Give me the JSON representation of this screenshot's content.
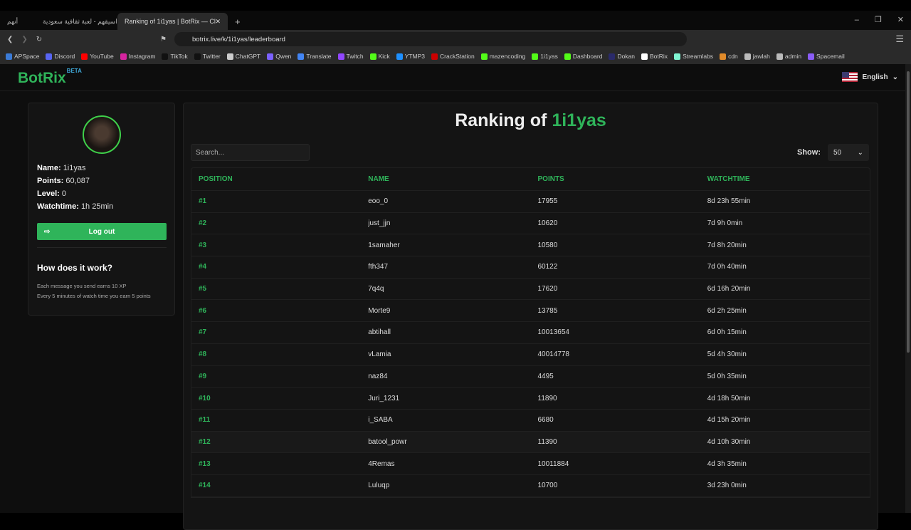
{
  "browser": {
    "tabs": [
      {
        "label": "اسيقهم - لعبة ثقافية سعودية"
      },
      {
        "label": "Ranking of 1i1yas | BotRix — Cl"
      }
    ],
    "profile_label": "أنهم",
    "url": "botrix.live/k/1i1yas/leaderboard",
    "bookmarks": [
      {
        "label": "APSpace",
        "color": "#3b7bd6"
      },
      {
        "label": "Discord",
        "color": "#5865f2"
      },
      {
        "label": "YouTube",
        "color": "#ff0000"
      },
      {
        "label": "Instagram",
        "color": "#d6249f"
      },
      {
        "label": "TikTok",
        "color": "#111111"
      },
      {
        "label": "Twitter",
        "color": "#111111"
      },
      {
        "label": "ChatGPT",
        "color": "#cccccc"
      },
      {
        "label": "Qwen",
        "color": "#7b61ff"
      },
      {
        "label": "Translate",
        "color": "#4285f4"
      },
      {
        "label": "Twitch",
        "color": "#9146ff"
      },
      {
        "label": "Kick",
        "color": "#53fc18"
      },
      {
        "label": "YTMP3",
        "color": "#1e90ff"
      },
      {
        "label": "CrackStation",
        "color": "#cc0000"
      },
      {
        "label": "mazencoding",
        "color": "#53fc18"
      },
      {
        "label": "1i1yas",
        "color": "#53fc18"
      },
      {
        "label": "Dashboard",
        "color": "#53fc18"
      },
      {
        "label": "Dokan",
        "color": "#2a2a6a"
      },
      {
        "label": "BotRix",
        "color": "#ffffff"
      },
      {
        "label": "Streamlabs",
        "color": "#80f5d2"
      },
      {
        "label": "cdn",
        "color": "#e08a2a"
      },
      {
        "label": "jawlah",
        "color": "#bbbbbb"
      },
      {
        "label": "admin",
        "color": "#bbbbbb"
      },
      {
        "label": "Spacemail",
        "color": "#8a5cf6"
      }
    ]
  },
  "header": {
    "logo": "BotRix",
    "badge": "BETA",
    "language": "English"
  },
  "profile": {
    "name_label": "Name:",
    "name": "1i1yas",
    "points_label": "Points:",
    "points": "60,087",
    "level_label": "Level:",
    "level": "0",
    "watchtime_label": "Watchtime:",
    "watchtime": "1h 25min",
    "logout": "Log out",
    "how_title": "How does it work?",
    "how_line1": "Each message you send earns 10 XP",
    "how_line2": "Every 5 minutes of watch time you earn 5 points"
  },
  "leaderboard": {
    "title_prefix": "Ranking of",
    "title_user": "1i1yas",
    "search_placeholder": "Search...",
    "show_label": "Show:",
    "show_value": "50",
    "columns": [
      "POSITION",
      "NAME",
      "POINTS",
      "WATCHTIME"
    ],
    "rows": [
      [
        "#1",
        "eoo_0",
        "17955",
        "8d 23h 55min"
      ],
      [
        "#2",
        "just_jjn",
        "10620",
        "7d 9h 0min"
      ],
      [
        "#3",
        "1samaher",
        "10580",
        "7d 8h 20min"
      ],
      [
        "#4",
        "fth347",
        "60122",
        "7d 0h 40min"
      ],
      [
        "#5",
        "7q4q",
        "17620",
        "6d 16h 20min"
      ],
      [
        "#6",
        "Morte9",
        "13785",
        "6d 2h 25min"
      ],
      [
        "#7",
        "abtihall",
        "10013654",
        "6d 0h 15min"
      ],
      [
        "#8",
        "vLamia",
        "40014778",
        "5d 4h 30min"
      ],
      [
        "#9",
        "naz84",
        "4495",
        "5d 0h 35min"
      ],
      [
        "#10",
        "Juri_1231",
        "11890",
        "4d 18h 50min"
      ],
      [
        "#11",
        "i_SABA",
        "6680",
        "4d 15h 20min"
      ],
      [
        "#12",
        "batool_powr",
        "11390",
        "4d 10h 30min"
      ],
      [
        "#13",
        "4Remas",
        "10011884",
        "4d 3h 35min"
      ],
      [
        "#14",
        "Luluqp",
        "10700",
        "3d 23h 0min"
      ]
    ]
  },
  "colors": {
    "accent": "#2fb45a",
    "background": "#0e0e0e",
    "panel": "#141414"
  }
}
